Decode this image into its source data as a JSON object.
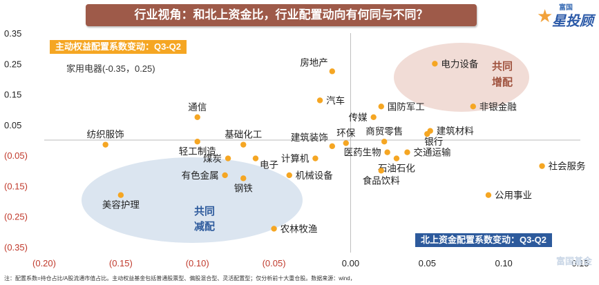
{
  "title": "行业视角：和北上资金比，行业配置动向有何同与不同？",
  "logo": {
    "small_text": "富国",
    "big_text": "星投顾"
  },
  "labels": {
    "active_equity": "主动权益配置系数变动：Q3-Q2",
    "northbound": "北上资金配置系数变动：Q3-Q2",
    "outlier_note": "家用电器(-0.35，0.25)",
    "common_increase": "共同\n增配",
    "common_decrease": "共同\n减配"
  },
  "footnote": "注：配置系数=持仓占比/A股流通市值占比。主动权益基金包括普通股票型、偏股混合型、灵活配置型；仅分析前十大重仓股。数据来源：wind，",
  "watermark": "富国基金",
  "colors": {
    "point": "#f5a623",
    "increase_region": "#f1dcd6",
    "decrease_region": "#dbe5f0",
    "increase_text": "#a0533f",
    "decrease_text": "#2d5a9c",
    "axis_neg_x": "#c0392b",
    "axis_neg_y": "#c0392b",
    "axis_pos": "#222222"
  },
  "chart_data": {
    "type": "scatter",
    "xlim": [
      -0.2,
      0.15
    ],
    "ylim": [
      -0.35,
      0.35
    ],
    "x_ticks": [
      -0.2,
      -0.15,
      -0.1,
      -0.05,
      0.0,
      0.05,
      0.1,
      0.15
    ],
    "x_tick_labels": [
      "(0.20)",
      "(0.15)",
      "(0.10)",
      "(0.05)",
      "0.00",
      "0.05",
      "0.10",
      "0.15"
    ],
    "y_ticks": [
      0.35,
      0.25,
      0.15,
      0.05,
      -0.05,
      -0.15,
      -0.25,
      -0.35
    ],
    "y_tick_labels": [
      "0.35",
      "0.25",
      "0.15",
      "0.05",
      "(0.05)",
      "(0.15)",
      "(0.25)",
      "(0.35)"
    ],
    "grid": false,
    "points": [
      {
        "name": "房地产",
        "x": -0.012,
        "y": 0.225,
        "label_pos": "top-left"
      },
      {
        "name": "电力设备",
        "x": 0.055,
        "y": 0.25,
        "label_pos": "right"
      },
      {
        "name": "汽车",
        "x": -0.02,
        "y": 0.13,
        "label_pos": "right"
      },
      {
        "name": "通信",
        "x": -0.1,
        "y": 0.075,
        "label_pos": "top"
      },
      {
        "name": "传媒",
        "x": 0.015,
        "y": 0.075,
        "label_pos": "left"
      },
      {
        "name": "国防军工",
        "x": 0.02,
        "y": 0.11,
        "label_pos": "right"
      },
      {
        "name": "非银金融",
        "x": 0.08,
        "y": 0.11,
        "label_pos": "right"
      },
      {
        "name": "建筑材料",
        "x": 0.052,
        "y": 0.03,
        "label_pos": "right"
      },
      {
        "name": "银行",
        "x": 0.05,
        "y": 0.02,
        "label_pos": "bottom-left"
      },
      {
        "name": "纺织服饰",
        "x": -0.16,
        "y": -0.015,
        "label_pos": "top"
      },
      {
        "name": "基础化工",
        "x": -0.07,
        "y": -0.015,
        "label_pos": "top"
      },
      {
        "name": "轻工制造",
        "x": -0.1,
        "y": -0.005,
        "label_pos": "bottom"
      },
      {
        "name": "建筑装饰",
        "x": -0.012,
        "y": -0.02,
        "label_pos": "top-left"
      },
      {
        "name": "环保",
        "x": -0.003,
        "y": -0.01,
        "label_pos": "top"
      },
      {
        "name": "商贸零售",
        "x": 0.022,
        "y": -0.005,
        "label_pos": "top"
      },
      {
        "name": "交通运输",
        "x": 0.037,
        "y": -0.04,
        "label_pos": "right"
      },
      {
        "name": "医药生物",
        "x": 0.024,
        "y": -0.04,
        "label_pos": "left"
      },
      {
        "name": "计算机",
        "x": -0.023,
        "y": -0.06,
        "label_pos": "left"
      },
      {
        "name": "煤炭",
        "x": -0.08,
        "y": -0.06,
        "label_pos": "left"
      },
      {
        "name": "电子",
        "x": -0.062,
        "y": -0.06,
        "label_pos": "bottom-right"
      },
      {
        "name": "石油石化",
        "x": 0.03,
        "y": -0.06,
        "label_pos": "bottom"
      },
      {
        "name": "社会服务",
        "x": 0.125,
        "y": -0.085,
        "label_pos": "right"
      },
      {
        "name": "食品饮料",
        "x": 0.02,
        "y": -0.1,
        "label_pos": "bottom"
      },
      {
        "name": "机械设备",
        "x": -0.04,
        "y": -0.115,
        "label_pos": "right"
      },
      {
        "name": "有色金属",
        "x": -0.082,
        "y": -0.115,
        "label_pos": "left"
      },
      {
        "name": "钢铁",
        "x": -0.07,
        "y": -0.125,
        "label_pos": "bottom"
      },
      {
        "name": "美容护理",
        "x": -0.15,
        "y": -0.18,
        "label_pos": "bottom"
      },
      {
        "name": "公用事业",
        "x": 0.09,
        "y": -0.18,
        "label_pos": "right"
      },
      {
        "name": "农林牧渔",
        "x": -0.05,
        "y": -0.29,
        "label_pos": "right"
      }
    ]
  }
}
